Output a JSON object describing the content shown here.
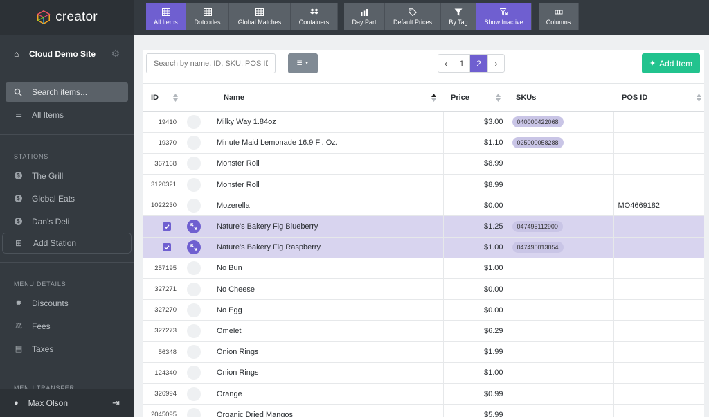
{
  "app": {
    "logo_text": "creator"
  },
  "sidebar": {
    "site_name": "Cloud Demo Site",
    "search_placeholder": "Search items...",
    "all_items_label": "All Items",
    "stations_title": "STATIONS",
    "stations": [
      {
        "label": "The Grill"
      },
      {
        "label": "Global Eats"
      },
      {
        "label": "Dan's Deli"
      }
    ],
    "add_station_label": "Add Station",
    "menu_details_title": "MENU DETAILS",
    "menu_details": [
      {
        "label": "Discounts",
        "icon": "gear-icon"
      },
      {
        "label": "Fees",
        "icon": "scale-icon"
      },
      {
        "label": "Taxes",
        "icon": "receipt-icon"
      }
    ],
    "menu_transfer_title": "MENU TRANSFER",
    "user_name": "Max Olson"
  },
  "toolbar": {
    "buttons": [
      {
        "label": "All Items",
        "icon": "grid-icon",
        "active": true
      },
      {
        "label": "Dotcodes",
        "icon": "grid-icon",
        "active": false
      },
      {
        "label": "Global Matches",
        "icon": "grid-icon",
        "active": false
      },
      {
        "label": "Containers",
        "icon": "dropbox-icon",
        "active": false
      },
      {
        "label": "Day Part",
        "icon": "chart-icon",
        "active": false
      },
      {
        "label": "Default Prices",
        "icon": "tag-icon",
        "active": false
      },
      {
        "label": "By Tag",
        "icon": "filter-icon",
        "active": false
      },
      {
        "label": "Show Inactive",
        "icon": "filter-x-icon",
        "active": true
      },
      {
        "label": "Columns",
        "icon": "columns-icon",
        "active": false
      }
    ]
  },
  "main": {
    "search_placeholder": "Search by name, ID, SKU, POS ID",
    "pagination": {
      "prev": "‹",
      "pages": [
        "1",
        "2"
      ],
      "current": "2",
      "next": "›"
    },
    "add_item_label": "Add Item",
    "columns": {
      "id": "ID",
      "name": "Name",
      "price": "Price",
      "skus": "SKUs",
      "pos_id": "POS ID"
    },
    "rows": [
      {
        "id": "19410",
        "name": "Milky Way 1.84oz",
        "price": "$3.00",
        "sku": "040000422068",
        "pos": "",
        "selected": false
      },
      {
        "id": "19370",
        "name": "Minute Maid Lemonade 16.9 Fl. Oz.",
        "price": "$1.10",
        "sku": "025000058288",
        "pos": "",
        "selected": false
      },
      {
        "id": "367168",
        "name": "Monster Roll",
        "price": "$8.99",
        "sku": "",
        "pos": "",
        "selected": false
      },
      {
        "id": "3120321",
        "name": "Monster Roll",
        "price": "$8.99",
        "sku": "",
        "pos": "",
        "selected": false
      },
      {
        "id": "1022230",
        "name": "Mozerella",
        "price": "$0.00",
        "sku": "",
        "pos": "MO4669182",
        "selected": false
      },
      {
        "id": "",
        "name": "Nature's Bakery Fig Blueberry",
        "price": "$1.25",
        "sku": "047495112900",
        "pos": "",
        "selected": true
      },
      {
        "id": "",
        "name": "Nature's Bakery Fig Raspberry",
        "price": "$1.00",
        "sku": "047495013054",
        "pos": "",
        "selected": true
      },
      {
        "id": "257195",
        "name": "No Bun",
        "price": "$1.00",
        "sku": "",
        "pos": "",
        "selected": false
      },
      {
        "id": "327271",
        "name": "No Cheese",
        "price": "$0.00",
        "sku": "",
        "pos": "",
        "selected": false
      },
      {
        "id": "327270",
        "name": "No Egg",
        "price": "$0.00",
        "sku": "",
        "pos": "",
        "selected": false
      },
      {
        "id": "327273",
        "name": "Omelet",
        "price": "$6.29",
        "sku": "",
        "pos": "",
        "selected": false
      },
      {
        "id": "56348",
        "name": "Onion Rings",
        "price": "$1.99",
        "sku": "",
        "pos": "",
        "selected": false
      },
      {
        "id": "124340",
        "name": "Onion Rings",
        "price": "$1.00",
        "sku": "",
        "pos": "",
        "selected": false
      },
      {
        "id": "326994",
        "name": "Orange",
        "price": "$0.99",
        "sku": "",
        "pos": "",
        "selected": false
      },
      {
        "id": "2045095",
        "name": "Organic Dried Mangos",
        "price": "$5.99",
        "sku": "",
        "pos": "",
        "selected": false
      }
    ]
  }
}
